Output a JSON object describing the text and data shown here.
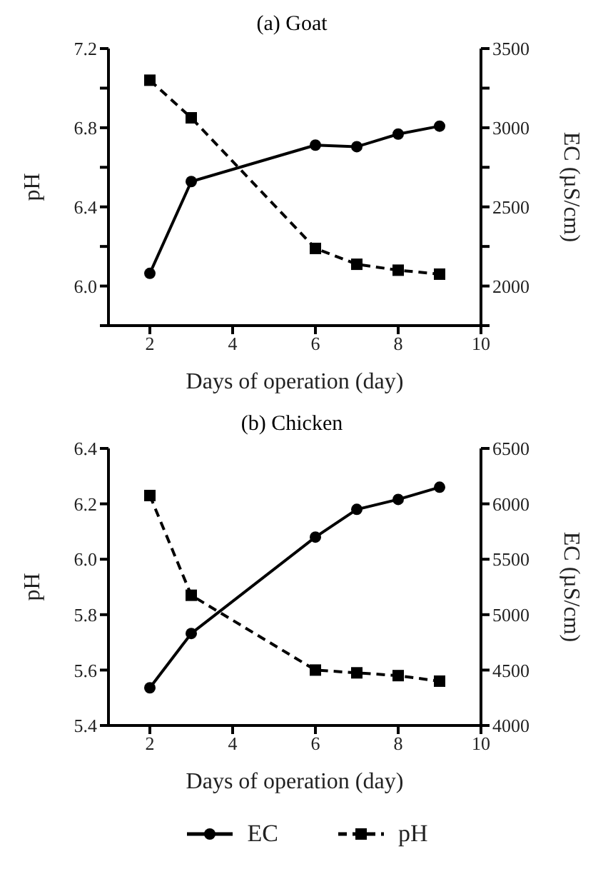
{
  "chart_data": [
    {
      "type": "line",
      "title": "(a)  Goat",
      "xlabel": "Days of operation (day)",
      "ylabel": "pH",
      "y2label": "EC (µS/cm)",
      "x": [
        2,
        3,
        6,
        7,
        8,
        9
      ],
      "xlim": [
        1,
        10
      ],
      "xticks": [
        2,
        4,
        6,
        8,
        10
      ],
      "ylim": [
        5.8,
        7.2
      ],
      "yticks": [
        {
          "value": 5.8,
          "label": null
        },
        {
          "value": 6,
          "label": "6.0"
        },
        {
          "value": 6.2,
          "label": null
        },
        6.4,
        {
          "value": 6.6,
          "label": null
        },
        6.8,
        {
          "value": 7,
          "label": null
        },
        7.2
      ],
      "y2lim": [
        1750,
        3500
      ],
      "y2ticks": [
        {
          "value": 1750,
          "label": null
        },
        2000,
        {
          "value": 2250,
          "label": null
        },
        2500,
        {
          "value": 2750,
          "label": null
        },
        3000,
        {
          "value": 3250,
          "label": null
        },
        3500
      ],
      "legend": false,
      "grid": false,
      "series": [
        {
          "color": "#000000",
          "axis": "y2",
          "marker": "circle",
          "line_style": "solid",
          "values": [
            2080,
            2660,
            2890,
            2880,
            2960,
            3010
          ]
        },
        {
          "color": "#000000",
          "axis": "y",
          "marker": "square",
          "line_style": "dashed",
          "values": [
            7.04,
            6.85,
            6.19,
            6.11,
            6.08,
            6.06
          ]
        }
      ]
    },
    {
      "type": "line",
      "title": "(b)  Chicken",
      "xlabel": "Days of operation (day)",
      "ylabel": "pH",
      "y2label": "EC (µS/cm)",
      "x": [
        2,
        3,
        6,
        7,
        8,
        9
      ],
      "xlim": [
        1,
        10
      ],
      "xticks": [
        2,
        4,
        6,
        8,
        10
      ],
      "ylim": [
        5.4,
        6.4
      ],
      "yticks": [
        5.4,
        5.6,
        5.8,
        {
          "value": 6,
          "label": "6.0"
        },
        6.2,
        6.4
      ],
      "y2lim": [
        4000,
        6500
      ],
      "y2ticks": [
        4000,
        4500,
        5000,
        5500,
        6000,
        6500
      ],
      "legend": "bottom",
      "grid": false,
      "series": [
        {
          "name": "EC",
          "color": "#000000",
          "axis": "y2",
          "marker": "circle",
          "line_style": "solid",
          "values": [
            4340,
            4830,
            5700,
            5950,
            6040,
            6150
          ]
        },
        {
          "name": "pH",
          "color": "#000000",
          "axis": "y",
          "marker": "square",
          "line_style": "dashed",
          "values": [
            6.23,
            5.87,
            5.6,
            5.59,
            5.58,
            5.56
          ]
        }
      ]
    }
  ]
}
